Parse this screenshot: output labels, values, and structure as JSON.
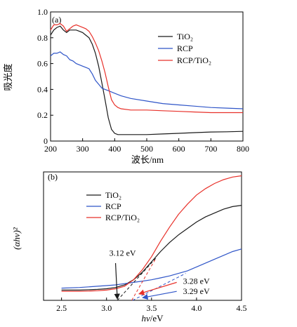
{
  "colors": {
    "TiO2": "#1a1a1a",
    "RCP": "#2f55c8",
    "RCP/TiO2": "#e8312a"
  },
  "chart_data": [
    {
      "panel_label": "(a)",
      "type": "line",
      "xlabel": "波长/nm",
      "ylabel": "吸光度",
      "xlim": [
        200,
        800
      ],
      "ylim": [
        0,
        1.0
      ],
      "xticks": [
        "200",
        "300",
        "400",
        "500",
        "600",
        "700",
        "800"
      ],
      "yticks": [
        "0",
        "0.2",
        "0.4",
        "0.6",
        "0.8",
        "1.0"
      ],
      "legend": [
        "TiO₂",
        "RCP",
        "RCP/TiO₂"
      ],
      "legend_position": "top-right",
      "series": [
        {
          "name": "TiO₂",
          "x": [
            200,
            210,
            220,
            230,
            240,
            250,
            260,
            270,
            280,
            290,
            300,
            310,
            320,
            330,
            340,
            350,
            360,
            370,
            380,
            390,
            400,
            410,
            420,
            430,
            450,
            500,
            550,
            600,
            650,
            700,
            750,
            800
          ],
          "y": [
            0.82,
            0.86,
            0.88,
            0.89,
            0.86,
            0.84,
            0.86,
            0.86,
            0.86,
            0.85,
            0.84,
            0.82,
            0.8,
            0.75,
            0.68,
            0.58,
            0.45,
            0.32,
            0.18,
            0.09,
            0.06,
            0.05,
            0.05,
            0.05,
            0.05,
            0.05,
            0.055,
            0.06,
            0.065,
            0.07,
            0.072,
            0.075
          ]
        },
        {
          "name": "RCP",
          "x": [
            200,
            210,
            220,
            230,
            240,
            250,
            260,
            270,
            280,
            290,
            300,
            310,
            320,
            330,
            340,
            350,
            360,
            370,
            380,
            390,
            400,
            420,
            450,
            500,
            550,
            600,
            650,
            700,
            750,
            800
          ],
          "y": [
            0.66,
            0.68,
            0.68,
            0.69,
            0.67,
            0.66,
            0.63,
            0.62,
            0.6,
            0.59,
            0.58,
            0.57,
            0.56,
            0.52,
            0.47,
            0.44,
            0.41,
            0.4,
            0.39,
            0.38,
            0.37,
            0.35,
            0.33,
            0.31,
            0.29,
            0.28,
            0.27,
            0.26,
            0.255,
            0.25
          ]
        },
        {
          "name": "RCP/TiO₂",
          "x": [
            200,
            210,
            220,
            230,
            240,
            250,
            260,
            270,
            280,
            290,
            300,
            310,
            320,
            330,
            340,
            350,
            360,
            370,
            380,
            390,
            400,
            410,
            420,
            450,
            500,
            550,
            600,
            650,
            700,
            750,
            800
          ],
          "y": [
            0.86,
            0.9,
            0.9,
            0.91,
            0.89,
            0.85,
            0.87,
            0.89,
            0.9,
            0.89,
            0.88,
            0.87,
            0.85,
            0.81,
            0.76,
            0.7,
            0.62,
            0.53,
            0.42,
            0.32,
            0.28,
            0.26,
            0.25,
            0.24,
            0.24,
            0.235,
            0.23,
            0.225,
            0.22,
            0.22,
            0.22
          ]
        }
      ]
    },
    {
      "panel_label": "(b)",
      "type": "line",
      "xlabel_italic": "hν",
      "xlabel_unit": "/eV",
      "ylabel": "(αhν)²",
      "xlim": [
        2.3,
        4.5
      ],
      "ylim": [
        0,
        1.0
      ],
      "xticks": [
        "2.5",
        "3.0",
        "3.5",
        "4.0",
        "4.5"
      ],
      "legend": [
        "TiO₂",
        "RCP",
        "RCP/TiO₂"
      ],
      "legend_position": "top-left",
      "annotations": [
        {
          "text": "3.12 eV",
          "target": 3.12,
          "color": "#1a1a1a"
        },
        {
          "text": "3.28 eV",
          "target": 3.28,
          "color": "#e8312a"
        },
        {
          "text": "3.29 eV",
          "target": 3.29,
          "color": "#2f55c8"
        }
      ],
      "series": [
        {
          "name": "TiO₂",
          "x": [
            2.5,
            2.7,
            2.9,
            3.0,
            3.1,
            3.2,
            3.3,
            3.4,
            3.5,
            3.6,
            3.7,
            3.8,
            3.9,
            4.0,
            4.1,
            4.2,
            4.3,
            4.4,
            4.5
          ],
          "y": [
            0.08,
            0.08,
            0.085,
            0.09,
            0.1,
            0.12,
            0.16,
            0.22,
            0.3,
            0.38,
            0.45,
            0.51,
            0.56,
            0.61,
            0.65,
            0.68,
            0.71,
            0.73,
            0.74
          ]
        },
        {
          "name": "RCP",
          "x": [
            2.5,
            2.7,
            2.9,
            3.0,
            3.1,
            3.2,
            3.3,
            3.4,
            3.5,
            3.6,
            3.7,
            3.8,
            3.9,
            4.0,
            4.1,
            4.2,
            4.3,
            4.4,
            4.5
          ],
          "y": [
            0.095,
            0.1,
            0.11,
            0.115,
            0.12,
            0.13,
            0.14,
            0.15,
            0.16,
            0.175,
            0.19,
            0.21,
            0.23,
            0.26,
            0.29,
            0.32,
            0.35,
            0.38,
            0.4
          ]
        },
        {
          "name": "RCP/TiO₂",
          "x": [
            2.5,
            2.7,
            2.9,
            3.0,
            3.1,
            3.2,
            3.3,
            3.4,
            3.5,
            3.6,
            3.7,
            3.8,
            3.9,
            4.0,
            4.1,
            4.2,
            4.3,
            4.4,
            4.5
          ],
          "y": [
            0.07,
            0.07,
            0.075,
            0.08,
            0.09,
            0.11,
            0.16,
            0.24,
            0.34,
            0.46,
            0.57,
            0.67,
            0.75,
            0.82,
            0.87,
            0.91,
            0.94,
            0.96,
            0.97
          ]
        }
      ]
    }
  ]
}
